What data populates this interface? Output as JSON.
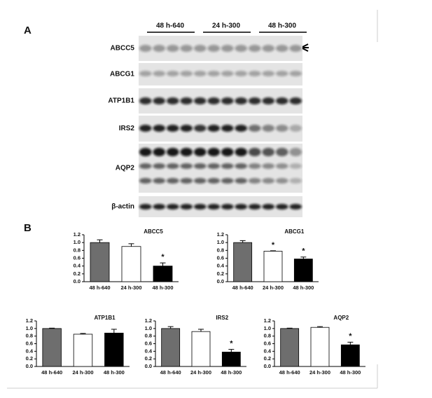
{
  "panel_a": {
    "label": "A",
    "groups": [
      "48 h-640",
      "24 h-300",
      "48 h-300"
    ],
    "rows": [
      "ABCC5",
      "ABCG1",
      "ATP1B1",
      "IRS2",
      "AQP2",
      "β-actin"
    ]
  },
  "panel_b": {
    "label": "B"
  },
  "chart_data": [
    {
      "type": "bar",
      "title": "ABCC5",
      "categories": [
        "48 h-640",
        "24 h-300",
        "48 h-300"
      ],
      "values": [
        1.0,
        0.9,
        0.4
      ],
      "errors": [
        0.07,
        0.07,
        0.08
      ],
      "colors": [
        "#6e6e6e",
        "#ffffff",
        "#000000"
      ],
      "annotations": [
        {
          "index": 2,
          "text": "*"
        }
      ],
      "ylim": [
        0,
        1.2
      ],
      "yticks": [
        {
          "value": 0,
          "label": "0.0"
        },
        {
          "value": 0.2,
          "label": "0.2"
        },
        {
          "value": 0.4,
          "label": "0.4"
        },
        {
          "value": 0.6,
          "label": "0.6"
        },
        {
          "value": 0.8,
          "label": "0.8"
        },
        {
          "value": 1,
          "label": "1.0"
        },
        {
          "value": 1.2,
          "label": "1.2"
        }
      ]
    },
    {
      "type": "bar",
      "title": "ABCG1",
      "categories": [
        "48 h-640",
        "24 h-300",
        "48 h-300"
      ],
      "values": [
        1.0,
        0.78,
        0.58
      ],
      "errors": [
        0.05,
        0.01,
        0.05
      ],
      "colors": [
        "#6e6e6e",
        "#ffffff",
        "#000000"
      ],
      "annotations": [
        {
          "index": 1,
          "text": "*"
        },
        {
          "index": 2,
          "text": "*"
        }
      ],
      "ylim": [
        0,
        1.2
      ],
      "yticks": [
        {
          "value": 0,
          "label": "0.0"
        },
        {
          "value": 0.2,
          "label": "0.2"
        },
        {
          "value": 0.4,
          "label": "0.4"
        },
        {
          "value": 0.6,
          "label": "0.6"
        },
        {
          "value": 0.8,
          "label": "0.8"
        },
        {
          "value": 1,
          "label": "1.0"
        },
        {
          "value": 1.2,
          "label": "1.2"
        }
      ]
    },
    {
      "type": "bar",
      "title": "ATP1B1",
      "categories": [
        "48 h-640",
        "24 h-300",
        "48 h-300"
      ],
      "values": [
        1.0,
        0.85,
        0.88
      ],
      "errors": [
        0.01,
        0.02,
        0.1
      ],
      "colors": [
        "#6e6e6e",
        "#ffffff",
        "#000000"
      ],
      "annotations": [],
      "ylim": [
        0,
        1.2
      ],
      "yticks": [
        {
          "value": 0,
          "label": "0.0"
        },
        {
          "value": 0.2,
          "label": "0.2"
        },
        {
          "value": 0.4,
          "label": "0.4"
        },
        {
          "value": 0.6,
          "label": "0.6"
        },
        {
          "value": 0.8,
          "label": "0.8"
        },
        {
          "value": 1,
          "label": "1.0"
        },
        {
          "value": 1.2,
          "label": "1.2"
        }
      ]
    },
    {
      "type": "bar",
      "title": "IRS2",
      "categories": [
        "48 h-640",
        "24 h-300",
        "48 h-300"
      ],
      "values": [
        1.0,
        0.92,
        0.38
      ],
      "errors": [
        0.05,
        0.06,
        0.07
      ],
      "colors": [
        "#6e6e6e",
        "#ffffff",
        "#000000"
      ],
      "annotations": [
        {
          "index": 2,
          "text": "*"
        }
      ],
      "ylim": [
        0,
        1.2
      ],
      "yticks": [
        {
          "value": 0,
          "label": "0.0"
        },
        {
          "value": 0.2,
          "label": "0.2"
        },
        {
          "value": 0.4,
          "label": "0.4"
        },
        {
          "value": 0.6,
          "label": "0.6"
        },
        {
          "value": 0.8,
          "label": "0.8"
        },
        {
          "value": 1,
          "label": "1.0"
        },
        {
          "value": 1.2,
          "label": "1.2"
        }
      ]
    },
    {
      "type": "bar",
      "title": "AQP2",
      "categories": [
        "48 h-640",
        "24 h-300",
        "48 h-300"
      ],
      "values": [
        1.0,
        1.03,
        0.57
      ],
      "errors": [
        0.01,
        0.02,
        0.07
      ],
      "colors": [
        "#6e6e6e",
        "#ffffff",
        "#000000"
      ],
      "annotations": [
        {
          "index": 2,
          "text": "*"
        }
      ],
      "ylim": [
        0,
        1.2
      ],
      "yticks": [
        {
          "value": 0,
          "label": "0.0"
        },
        {
          "value": 0.2,
          "label": "0.2"
        },
        {
          "value": 0.4,
          "label": "0.4"
        },
        {
          "value": 0.6,
          "label": "0.6"
        },
        {
          "value": 0.8,
          "label": "0.8"
        },
        {
          "value": 1,
          "label": "1.0"
        },
        {
          "value": 1.2,
          "label": "1.2"
        }
      ]
    }
  ]
}
